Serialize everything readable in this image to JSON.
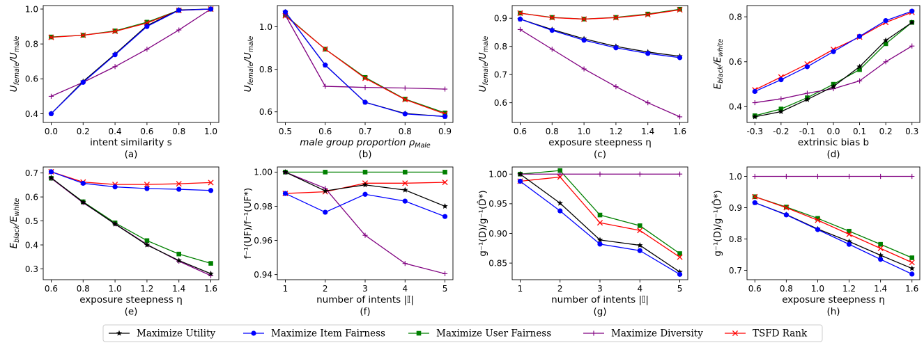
{
  "colors": {
    "utility": "#000000",
    "item": "#0000ff",
    "user": "#008000",
    "diversity": "#800080",
    "tsfd": "#ff0000"
  },
  "legend": [
    {
      "key": "utility",
      "label": "Maximize Utility",
      "marker": "star"
    },
    {
      "key": "item",
      "label": "Maximize Item Fairness",
      "marker": "circle"
    },
    {
      "key": "user",
      "label": "Maximize User Fairness",
      "marker": "square"
    },
    {
      "key": "diversity",
      "label": "Maximize Diversity",
      "marker": "plus"
    },
    {
      "key": "tsfd",
      "label": "TSFD Rank",
      "marker": "x"
    }
  ],
  "chart_data": [
    {
      "type": "line",
      "caption": "(a)",
      "xlabel": "intent similarity s",
      "ylabel": {
        "main": "U",
        "sub1": "female",
        "mid": "/U",
        "sub2": "male"
      },
      "x": [
        0.0,
        0.2,
        0.4,
        0.6,
        0.8,
        1.0
      ],
      "xticks": [
        "0.0",
        "0.2",
        "0.4",
        "0.6",
        "0.8",
        "1.0"
      ],
      "xlim": [
        -0.05,
        1.05
      ],
      "ylim": [
        0.35,
        1.02
      ],
      "yticks": [
        0.4,
        0.6,
        0.8,
        1.0
      ],
      "yticklabels": [
        "0.4",
        "0.6",
        "0.8",
        "1.0"
      ],
      "series": [
        {
          "key": "utility",
          "values": [
            0.4,
            0.585,
            0.742,
            0.905,
            0.995,
            1.0
          ]
        },
        {
          "key": "item",
          "values": [
            0.4,
            0.58,
            0.738,
            0.9,
            0.993,
            1.0
          ]
        },
        {
          "key": "user",
          "values": [
            0.84,
            0.85,
            0.875,
            0.925,
            0.993,
            1.0
          ]
        },
        {
          "key": "diversity",
          "values": [
            0.5,
            0.58,
            0.67,
            0.77,
            0.88,
            1.0
          ]
        },
        {
          "key": "tsfd",
          "values": [
            0.838,
            0.85,
            0.872,
            0.92,
            0.992,
            1.0
          ]
        }
      ]
    },
    {
      "type": "line",
      "caption": "(b)",
      "xlabel": {
        "main": "male group proportion ρ",
        "sub": "Male"
      },
      "ylabel": {
        "main": "U",
        "sub1": "female",
        "mid": "/U",
        "sub2": "male"
      },
      "x": [
        0.5,
        0.6,
        0.7,
        0.8,
        0.9
      ],
      "xticks": [
        "0.5",
        "0.6",
        "0.7",
        "0.8",
        "0.9"
      ],
      "xlim": [
        0.48,
        0.92
      ],
      "ylim": [
        0.55,
        1.1
      ],
      "yticks": [
        0.6,
        0.8,
        1.0
      ],
      "yticklabels": [
        "0.6",
        "0.8",
        "1.0"
      ],
      "series": [
        {
          "key": "utility",
          "values": [
            1.07,
            0.82,
            0.645,
            0.592,
            0.578
          ]
        },
        {
          "key": "item",
          "values": [
            1.07,
            0.82,
            0.645,
            0.59,
            0.578
          ]
        },
        {
          "key": "user",
          "values": [
            1.055,
            0.895,
            0.762,
            0.66,
            0.595
          ]
        },
        {
          "key": "diversity",
          "values": [
            1.055,
            0.72,
            0.715,
            0.712,
            0.707
          ]
        },
        {
          "key": "tsfd",
          "values": [
            1.052,
            0.895,
            0.758,
            0.658,
            0.59
          ]
        }
      ]
    },
    {
      "type": "line",
      "caption": "(c)",
      "xlabel": "exposure steepness η",
      "ylabel": {
        "main": "U",
        "sub1": "female",
        "mid": "/U",
        "sub2": "male"
      },
      "x": [
        0.6,
        0.8,
        1.0,
        1.2,
        1.4,
        1.6
      ],
      "xticks": [
        "0.6",
        "0.8",
        "1.0",
        "1.2",
        "1.4",
        "1.6"
      ],
      "xlim": [
        0.55,
        1.65
      ],
      "ylim": [
        0.53,
        0.945
      ],
      "yticks": [
        0.6,
        0.7,
        0.8,
        0.9
      ],
      "yticklabels": [
        "0.6",
        "0.7",
        "0.8",
        "0.9"
      ],
      "series": [
        {
          "key": "utility",
          "values": [
            0.897,
            0.86,
            0.827,
            0.8,
            0.78,
            0.765
          ]
        },
        {
          "key": "item",
          "values": [
            0.897,
            0.857,
            0.822,
            0.795,
            0.775,
            0.76
          ]
        },
        {
          "key": "user",
          "values": [
            0.918,
            0.903,
            0.897,
            0.903,
            0.915,
            0.932
          ]
        },
        {
          "key": "diversity",
          "values": [
            0.86,
            0.79,
            0.72,
            0.657,
            0.6,
            0.55
          ]
        },
        {
          "key": "tsfd",
          "values": [
            0.918,
            0.902,
            0.897,
            0.902,
            0.913,
            0.93
          ]
        }
      ]
    },
    {
      "type": "line",
      "caption": "(d)",
      "xlabel": "extrinsic bias b",
      "ylabel": {
        "main": "E",
        "sub1": "black",
        "mid": "/E",
        "sub2": "white"
      },
      "x": [
        -0.3,
        -0.2,
        -0.1,
        0.0,
        0.1,
        0.2,
        0.3
      ],
      "xticks": [
        "-0.3",
        "-0.2",
        "-0.1",
        "0.0",
        "0.1",
        "0.2",
        "0.3"
      ],
      "xlim": [
        -0.33,
        0.33
      ],
      "ylim": [
        0.33,
        0.85
      ],
      "yticks": [
        0.4,
        0.6,
        0.8
      ],
      "yticklabels": [
        "0.4",
        "0.6",
        "0.8"
      ],
      "series": [
        {
          "key": "utility",
          "values": [
            0.355,
            0.378,
            0.432,
            0.49,
            0.578,
            0.695,
            0.775
          ]
        },
        {
          "key": "item",
          "values": [
            0.468,
            0.52,
            0.578,
            0.645,
            0.713,
            0.783,
            0.825
          ]
        },
        {
          "key": "user",
          "values": [
            0.36,
            0.39,
            0.44,
            0.5,
            0.565,
            0.68,
            0.775
          ]
        },
        {
          "key": "diversity",
          "values": [
            0.418,
            0.435,
            0.46,
            0.48,
            0.515,
            0.6,
            0.67
          ]
        },
        {
          "key": "tsfd",
          "values": [
            0.475,
            0.532,
            0.59,
            0.655,
            0.71,
            0.775,
            0.82
          ]
        }
      ]
    },
    {
      "type": "line",
      "caption": "(e)",
      "xlabel": "exposure steepness η",
      "ylabel": {
        "main": "E",
        "sub1": "black",
        "mid": "/E",
        "sub2": "white"
      },
      "x": [
        0.6,
        0.8,
        1.0,
        1.2,
        1.4,
        1.6
      ],
      "xticks": [
        "0.6",
        "0.8",
        "1.0",
        "1.2",
        "1.4",
        "1.6"
      ],
      "xlim": [
        0.55,
        1.65
      ],
      "ylim": [
        0.255,
        0.725
      ],
      "yticks": [
        0.3,
        0.4,
        0.5,
        0.6,
        0.7
      ],
      "yticklabels": [
        "0.3",
        "0.4",
        "0.5",
        "0.6",
        "0.7"
      ],
      "series": [
        {
          "key": "utility",
          "values": [
            0.68,
            0.578,
            0.487,
            0.4,
            0.335,
            0.28
          ]
        },
        {
          "key": "item",
          "values": [
            0.705,
            0.657,
            0.642,
            0.635,
            0.632,
            0.627
          ]
        },
        {
          "key": "user",
          "values": [
            0.678,
            0.58,
            0.492,
            0.418,
            0.362,
            0.323
          ]
        },
        {
          "key": "diversity",
          "values": [
            0.678,
            0.576,
            0.488,
            0.402,
            0.332,
            0.272
          ]
        },
        {
          "key": "tsfd",
          "values": [
            0.705,
            0.662,
            0.652,
            0.652,
            0.655,
            0.66
          ]
        }
      ]
    },
    {
      "type": "line",
      "caption": "(f)",
      "xlabel": "number of intents |𝕀|",
      "ylabel": "f⁻¹(UF)/f⁻¹(UF*)",
      "x": [
        1,
        2,
        3,
        4,
        5
      ],
      "xticks": [
        "1",
        "2",
        "3",
        "4",
        "5"
      ],
      "xlim": [
        0.8,
        5.2
      ],
      "ylim": [
        0.937,
        1.003
      ],
      "yticks": [
        0.94,
        0.96,
        0.98,
        1.0
      ],
      "yticklabels": [
        "0.94",
        "0.96",
        "0.98",
        "1.00"
      ],
      "series": [
        {
          "key": "utility",
          "values": [
            1.0,
            0.989,
            0.9925,
            0.9895,
            0.98
          ]
        },
        {
          "key": "item",
          "values": [
            0.9875,
            0.9765,
            0.987,
            0.983,
            0.974
          ]
        },
        {
          "key": "user",
          "values": [
            1.0,
            1.0,
            1.0,
            1.0,
            1.0
          ]
        },
        {
          "key": "diversity",
          "values": [
            1.0,
            0.9905,
            0.963,
            0.9465,
            0.9405
          ]
        },
        {
          "key": "tsfd",
          "values": [
            0.9875,
            0.9885,
            0.9935,
            0.9935,
            0.994
          ]
        }
      ]
    },
    {
      "type": "line",
      "caption": "(g)",
      "xlabel": "number of intents |𝕀|",
      "ylabel": "g⁻¹(D)/g⁻¹(D̂*)",
      "x": [
        1,
        2,
        3,
        4,
        5
      ],
      "xticks": [
        "1",
        "2",
        "3",
        "4",
        "5"
      ],
      "xlim": [
        0.8,
        5.2
      ],
      "ylim": [
        0.822,
        1.012
      ],
      "yticks": [
        0.85,
        0.9,
        0.95,
        1.0
      ],
      "yticklabels": [
        "0.85",
        "0.90",
        "0.95",
        "1.00"
      ],
      "series": [
        {
          "key": "utility",
          "values": [
            1.0,
            0.951,
            0.889,
            0.88,
            0.835
          ]
        },
        {
          "key": "item",
          "values": [
            0.988,
            0.938,
            0.882,
            0.871,
            0.831
          ]
        },
        {
          "key": "user",
          "values": [
            1.0,
            1.006,
            0.931,
            0.913,
            0.866
          ]
        },
        {
          "key": "diversity",
          "values": [
            1.0,
            1.0,
            1.0,
            1.0,
            1.0
          ]
        },
        {
          "key": "tsfd",
          "values": [
            0.988,
            0.995,
            0.918,
            0.905,
            0.86
          ]
        }
      ]
    },
    {
      "type": "line",
      "caption": "(h)",
      "xlabel": "exposure steepness η",
      "ylabel": "g⁻¹(D)/g⁻¹(D̂*)",
      "x": [
        0.6,
        0.8,
        1.0,
        1.2,
        1.4,
        1.6
      ],
      "xticks": [
        "0.6",
        "0.8",
        "1.0",
        "1.2",
        "1.4",
        "1.6"
      ],
      "xlim": [
        0.55,
        1.65
      ],
      "ylim": [
        0.67,
        1.03
      ],
      "yticks": [
        0.7,
        0.8,
        0.9,
        1.0
      ],
      "yticklabels": [
        "0.7",
        "0.8",
        "0.9",
        "1.0"
      ],
      "series": [
        {
          "key": "utility",
          "values": [
            0.916,
            0.878,
            0.832,
            0.792,
            0.748,
            0.706
          ]
        },
        {
          "key": "item",
          "values": [
            0.916,
            0.877,
            0.83,
            0.783,
            0.735,
            0.688
          ]
        },
        {
          "key": "user",
          "values": [
            0.935,
            0.902,
            0.866,
            0.825,
            0.783,
            0.74
          ]
        },
        {
          "key": "diversity",
          "values": [
            1.0,
            1.0,
            1.0,
            1.0,
            1.0,
            1.0
          ]
        },
        {
          "key": "tsfd",
          "values": [
            0.935,
            0.9,
            0.86,
            0.815,
            0.77,
            0.725
          ]
        }
      ]
    }
  ]
}
